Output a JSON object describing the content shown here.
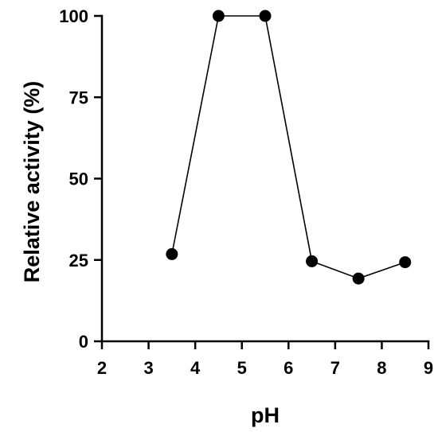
{
  "chart_data": {
    "type": "line",
    "title": "",
    "xlabel": "pH",
    "ylabel": "Relative activity (%)",
    "xlim": [
      2,
      9
    ],
    "ylim": [
      0,
      100
    ],
    "x_ticks": [
      2,
      3,
      4,
      5,
      6,
      7,
      8,
      9
    ],
    "y_ticks": [
      0,
      25,
      50,
      75,
      100
    ],
    "grid": false,
    "series": [
      {
        "x": [
          3.5,
          4.5,
          5.5,
          6.5,
          7.5,
          8.5
        ],
        "y": [
          26.8,
          100,
          100,
          24.6,
          19.3,
          24.3
        ],
        "color": "#000000",
        "marker": "circle"
      }
    ]
  }
}
